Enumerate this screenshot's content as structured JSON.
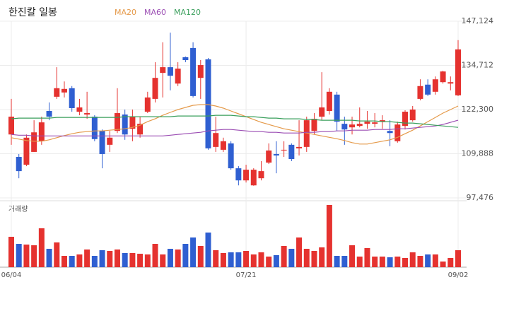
{
  "chart_data": {
    "type": "candlestick",
    "title": "한진칼 일봉",
    "categories": [
      "06/04",
      null,
      null,
      null,
      null,
      null,
      null,
      null,
      null,
      null,
      null,
      null,
      null,
      null,
      null,
      null,
      null,
      null,
      null,
      null,
      null,
      null,
      null,
      null,
      null,
      null,
      null,
      null,
      null,
      null,
      null,
      "07/21",
      null,
      null,
      null,
      null,
      null,
      null,
      null,
      null,
      null,
      null,
      null,
      null,
      null,
      null,
      null,
      null,
      null,
      null,
      null,
      null,
      null,
      null,
      null,
      null,
      null,
      null,
      null,
      "09/02"
    ],
    "open": [
      115300,
      109000,
      106800,
      110400,
      113400,
      121900,
      125900,
      127100,
      128300,
      121700,
      120900,
      120300,
      116300,
      112400,
      116300,
      120900,
      116900,
      115300,
      121700,
      125300,
      132600,
      134200,
      129600,
      137000,
      139600,
      131200,
      136400,
      111800,
      111000,
      112800,
      105800,
      102400,
      101000,
      103000,
      107400,
      109800,
      110800,
      112400,
      111400,
      111800,
      116300,
      120300,
      121900,
      126500,
      118300,
      117300,
      117700,
      118300,
      118300,
      118900,
      116300,
      113400,
      117700,
      119300,
      125300,
      129300,
      127300,
      130000,
      129600,
      126300
    ],
    "high": [
      125300,
      109800,
      115300,
      119300,
      120300,
      124300,
      134200,
      130200,
      128900,
      125300,
      127300,
      120700,
      116700,
      116300,
      128300,
      122300,
      122300,
      120300,
      127300,
      135600,
      141200,
      143900,
      135600,
      137200,
      141200,
      136200,
      136800,
      120300,
      114400,
      113400,
      106400,
      106800,
      105800,
      107800,
      112800,
      113400,
      113400,
      112800,
      119300,
      120300,
      121300,
      132800,
      128300,
      127300,
      120300,
      120300,
      122900,
      121900,
      121300,
      120700,
      119300,
      118900,
      122100,
      123300,
      130800,
      130800,
      131600,
      133200,
      131600,
      141800
    ],
    "low": [
      112400,
      103000,
      106400,
      110400,
      112400,
      119300,
      125300,
      125700,
      121700,
      120700,
      119700,
      113400,
      105800,
      110400,
      115700,
      113800,
      113400,
      114400,
      121300,
      124300,
      125700,
      127700,
      128900,
      135600,
      125700,
      125300,
      111000,
      110400,
      110400,
      105400,
      101000,
      101800,
      100900,
      102400,
      107000,
      104400,
      109000,
      107800,
      109400,
      110400,
      115300,
      119300,
      120900,
      116300,
      112400,
      115300,
      117300,
      116900,
      117300,
      116900,
      112000,
      113000,
      116700,
      118900,
      124900,
      126100,
      126500,
      129600,
      127700,
      126100
    ],
    "close": [
      120300,
      105000,
      114400,
      115900,
      118700,
      120300,
      128300,
      128100,
      122700,
      122900,
      121300,
      114000,
      109800,
      114400,
      121300,
      115300,
      120300,
      118300,
      125700,
      131200,
      134200,
      131800,
      133800,
      136200,
      126100,
      134800,
      111400,
      115700,
      113400,
      105800,
      102400,
      105400,
      105400,
      105000,
      110800,
      109400,
      111000,
      108400,
      111800,
      119300,
      119700,
      122900,
      127300,
      118900,
      116700,
      118100,
      118300,
      118900,
      118700,
      119300,
      115700,
      118100,
      121700,
      122300,
      128900,
      126500,
      130800,
      133000,
      130000,
      139200
    ],
    "up_color": "#e5322f",
    "down_color": "#2f5fd1",
    "moving_averages": [
      {
        "name": "MA20",
        "color": "#e59a4a",
        "values": [
          114400,
          114000,
          113600,
          113400,
          113400,
          113800,
          114400,
          115000,
          115500,
          115900,
          116100,
          116300,
          116300,
          116500,
          116700,
          116900,
          117300,
          117900,
          118900,
          119700,
          120700,
          121500,
          122300,
          122900,
          123500,
          123700,
          123700,
          123300,
          122700,
          121900,
          121100,
          120300,
          119500,
          118700,
          118100,
          117500,
          116900,
          116500,
          116100,
          115700,
          115300,
          114900,
          114500,
          114100,
          113600,
          113000,
          112600,
          112600,
          113000,
          113400,
          113800,
          114500,
          115500,
          116500,
          117700,
          118900,
          120100,
          121300,
          122300,
          123300
        ]
      },
      {
        "name": "MA60",
        "color": "#9b4db3",
        "values": [
          115300,
          115100,
          115100,
          114900,
          114900,
          114900,
          114900,
          114900,
          114900,
          114900,
          114900,
          114900,
          114900,
          114900,
          114900,
          114900,
          114900,
          114900,
          114900,
          114900,
          114900,
          115100,
          115300,
          115500,
          115700,
          115900,
          116300,
          116500,
          116700,
          116700,
          116500,
          116300,
          116100,
          116100,
          115900,
          115900,
          115700,
          115700,
          115700,
          115900,
          115900,
          116100,
          116100,
          116300,
          116300,
          116500,
          116500,
          116500,
          116700,
          116700,
          116700,
          116900,
          116900,
          117100,
          117300,
          117500,
          117700,
          118100,
          118700,
          119300
        ]
      },
      {
        "name": "MA120",
        "color": "#3a9f5c",
        "values": [
          119700,
          119900,
          119900,
          119900,
          119900,
          119900,
          120100,
          120100,
          120100,
          120100,
          120100,
          120100,
          120100,
          120100,
          120100,
          120300,
          120300,
          120300,
          120300,
          120300,
          120300,
          120300,
          120500,
          120500,
          120500,
          120500,
          120500,
          120700,
          120700,
          120700,
          120500,
          120300,
          120300,
          120100,
          119900,
          119900,
          119700,
          119700,
          119700,
          119500,
          119500,
          119300,
          119300,
          119300,
          119300,
          119300,
          119100,
          119100,
          119100,
          118900,
          118900,
          118700,
          118500,
          118500,
          118300,
          118100,
          117900,
          117700,
          117500,
          117300
        ]
      }
    ],
    "ylim": [
      97476,
      147124
    ],
    "yticks": [
      {
        "value": 147124,
        "label": "147,124"
      },
      {
        "value": 134712,
        "label": "134,712"
      },
      {
        "value": 122300,
        "label": "122,300"
      },
      {
        "value": 109888,
        "label": "109,888"
      },
      {
        "value": 97476,
        "label": "97,476"
      }
    ],
    "grid": true,
    "volume": {
      "label": "거래량",
      "ylim": [
        0,
        100
      ],
      "values": [
        43,
        33,
        32,
        31,
        55,
        26,
        35,
        16,
        16,
        18,
        25,
        16,
        24,
        23,
        25,
        20,
        20,
        19,
        18,
        33,
        18,
        26,
        25,
        33,
        42,
        30,
        49,
        24,
        20,
        21,
        21,
        23,
        18,
        21,
        15,
        17,
        30,
        26,
        42,
        26,
        23,
        28,
        88,
        16,
        16,
        31,
        15,
        27,
        15,
        15,
        14,
        15,
        13,
        21,
        16,
        18,
        18,
        8,
        13,
        24
      ]
    }
  }
}
